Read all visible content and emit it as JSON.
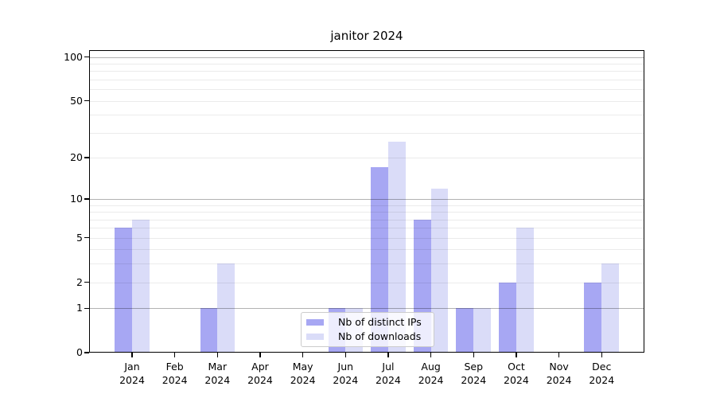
{
  "title": "janitor 2024",
  "chart_data": {
    "type": "bar",
    "title": "janitor 2024",
    "categories": [
      "Jan",
      "Feb",
      "Mar",
      "Apr",
      "May",
      "Jun",
      "Jul",
      "Aug",
      "Sep",
      "Oct",
      "Nov",
      "Dec"
    ],
    "x_axis": {
      "year_label": "2024"
    },
    "series": [
      {
        "name": "Nb of distinct IPs",
        "color": "#a7a7f3",
        "values": [
          6,
          0,
          1,
          0,
          0,
          1,
          17,
          7,
          1,
          2,
          0,
          2
        ]
      },
      {
        "name": "Nb of downloads",
        "color": "#dadcf8",
        "values": [
          7,
          0,
          3,
          0,
          0,
          1,
          26,
          12,
          1,
          6,
          0,
          3
        ]
      }
    ],
    "y_axis": {
      "scale": "log1p",
      "ticks": [
        0,
        1,
        2,
        5,
        10,
        20,
        50,
        100
      ],
      "tick_labels": [
        "0",
        "1",
        "2",
        "5",
        "10",
        "20",
        "50",
        "100"
      ],
      "major_gridlines": [
        1,
        10,
        100
      ],
      "minor_gridlines": [
        2,
        3,
        4,
        5,
        6,
        7,
        8,
        9,
        20,
        30,
        40,
        50,
        60,
        70,
        80,
        90
      ],
      "ylim": [
        0,
        112
      ]
    },
    "grid": true,
    "legend_position": "inside-bottom-center"
  },
  "colors": {
    "background": "#ffffff",
    "bar_dark": "#a7a7f3",
    "bar_light": "#dadcf8",
    "frame": "#000000",
    "gridline_major": "#b3b3b3",
    "gridline_minor": "#ebebeb",
    "legend_border": "#cccccc"
  }
}
